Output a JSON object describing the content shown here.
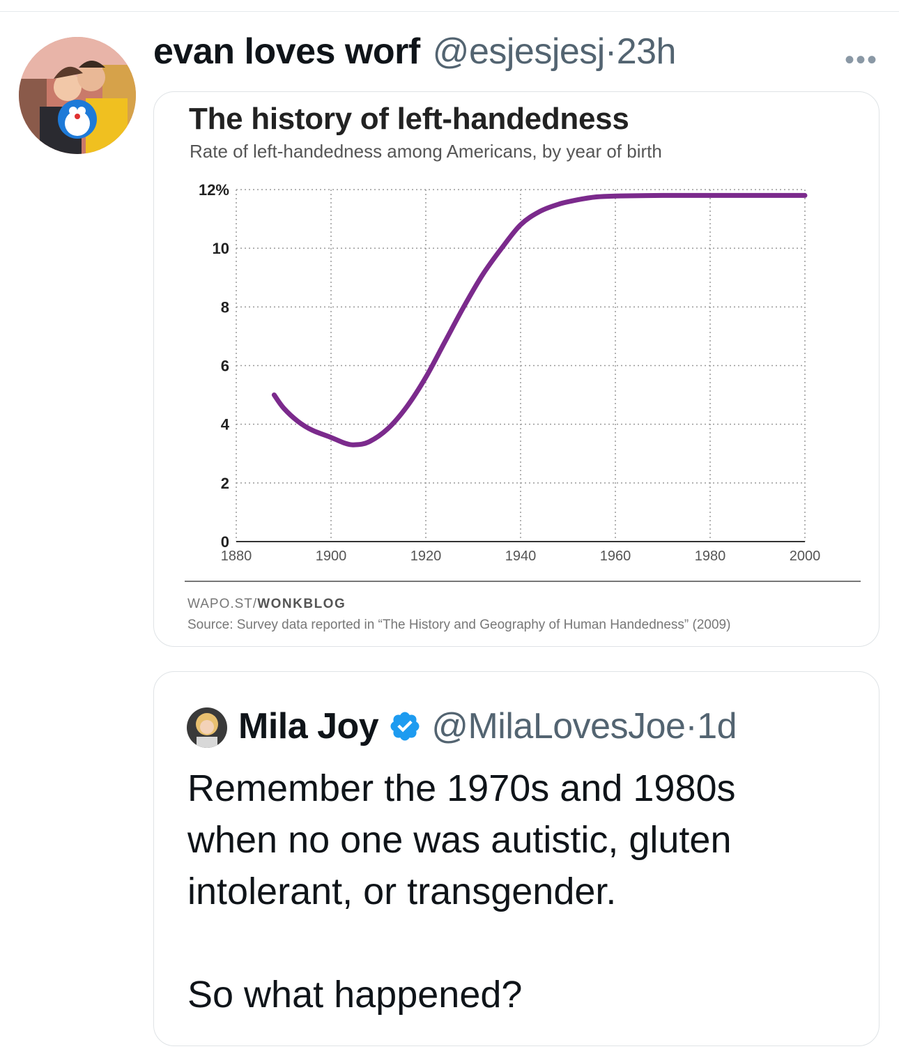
{
  "tweet": {
    "author_name": "evan loves worf",
    "author_handle": "@esjesjesj",
    "separator": "·",
    "time": "23h",
    "more_icon": "ellipsis-icon",
    "avatar_icon": "user-photo-icon"
  },
  "chart_card": {
    "credit_prefix": "WAPO.ST/",
    "credit_brand": "WONKBLOG",
    "source": "Source: Survey data reported in “The History and Geography of Human Handedness” (2009)"
  },
  "chart_data": {
    "type": "line",
    "title": "The history of left-handedness",
    "subtitle": "Rate of left-handedness among Americans, by year of birth",
    "xlabel": "",
    "ylabel": "",
    "xlim": [
      1880,
      2000
    ],
    "ylim": [
      0,
      12
    ],
    "x_ticks": [
      1880,
      1900,
      1920,
      1940,
      1960,
      1980,
      2000
    ],
    "y_ticks": [
      0,
      2,
      4,
      6,
      8,
      10,
      12
    ],
    "y_tick_labels": [
      "0",
      "2",
      "4",
      "6",
      "8",
      "10",
      "12%"
    ],
    "grid": true,
    "series_color": "#7b2a8c",
    "series": [
      {
        "x": [
          1888,
          1890,
          1893,
          1896,
          1900,
          1903,
          1905,
          1908,
          1912,
          1916,
          1920,
          1924,
          1928,
          1932,
          1936,
          1940,
          1944,
          1948,
          1952,
          1956,
          1960,
          1970,
          1980,
          1990,
          2000
        ],
        "values": [
          5.0,
          4.55,
          4.1,
          3.8,
          3.55,
          3.35,
          3.3,
          3.4,
          3.85,
          4.6,
          5.6,
          6.8,
          8.0,
          9.1,
          10.0,
          10.8,
          11.25,
          11.5,
          11.65,
          11.75,
          11.78,
          11.8,
          11.8,
          11.8,
          11.8
        ]
      }
    ]
  },
  "quoted": {
    "author_name": "Mila Joy",
    "verified_icon": "verified-badge-icon",
    "author_handle": "@MilaLovesJoe",
    "separator": "·",
    "time": "1d",
    "text_line1": "Remember the 1970s and 1980s",
    "text_line2": "when no one was autistic, gluten",
    "text_line3": "intolerant, or transgender.",
    "text_line4": "So what happened?"
  }
}
